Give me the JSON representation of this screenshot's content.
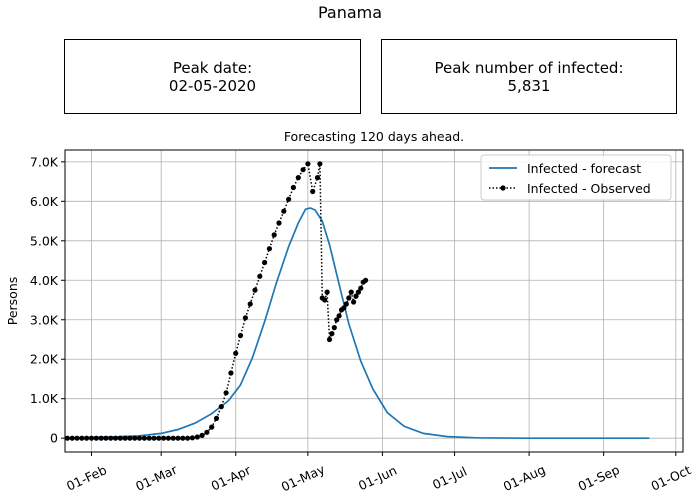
{
  "figure": {
    "title": "Panama"
  },
  "info_boxes": {
    "peak_date": {
      "label": "Peak date:",
      "value": "02-05-2020"
    },
    "peak_number": {
      "label": "Peak number of infected:",
      "value": "5,831"
    }
  },
  "chart_data": {
    "type": "line",
    "title": "Forecasting 120 days ahead.",
    "xlabel": "",
    "ylabel": "Persons",
    "xlim": [
      "2020-01-21",
      "2020-10-04"
    ],
    "ylim": [
      -350,
      7300
    ],
    "yticks": [
      0,
      1000,
      2000,
      3000,
      4000,
      5000,
      6000,
      7000
    ],
    "ytick_labels": [
      "0",
      "1.0K",
      "2.0K",
      "3.0K",
      "4.0K",
      "5.0K",
      "6.0K",
      "7.0K"
    ],
    "xticks": [
      "2020-02-01",
      "2020-03-01",
      "2020-04-01",
      "2020-05-01",
      "2020-06-01",
      "2020-07-01",
      "2020-08-01",
      "2020-09-01",
      "2020-10-01"
    ],
    "xtick_labels": [
      "01-Feb",
      "01-Mar",
      "01-Apr",
      "01-May",
      "01-Jun",
      "01-Jul",
      "01-Aug",
      "01-Sep",
      "01-Oct"
    ],
    "grid": true,
    "legend_position": "top-right",
    "series": [
      {
        "name": "Infected - forecast",
        "color": "#1f77b4",
        "style": "solid",
        "x": [
          "2020-01-22",
          "2020-02-01",
          "2020-02-11",
          "2020-02-21",
          "2020-03-01",
          "2020-03-08",
          "2020-03-15",
          "2020-03-22",
          "2020-03-29",
          "2020-04-03",
          "2020-04-08",
          "2020-04-13",
          "2020-04-18",
          "2020-04-23",
          "2020-04-27",
          "2020-04-30",
          "2020-05-02",
          "2020-05-04",
          "2020-05-07",
          "2020-05-10",
          "2020-05-14",
          "2020-05-18",
          "2020-05-23",
          "2020-05-28",
          "2020-06-03",
          "2020-06-10",
          "2020-06-18",
          "2020-06-28",
          "2020-07-10",
          "2020-08-01",
          "2020-09-01",
          "2020-09-20"
        ],
        "y": [
          10,
          20,
          35,
          60,
          120,
          220,
          380,
          620,
          950,
          1350,
          2050,
          2950,
          3950,
          4850,
          5450,
          5800,
          5831,
          5780,
          5500,
          4900,
          3900,
          2900,
          1950,
          1250,
          650,
          300,
          120,
          40,
          10,
          0,
          0,
          0
        ]
      },
      {
        "name": "Infected - Observed",
        "color": "#000000",
        "style": "dotted",
        "marker": "circle",
        "x": [
          "2020-01-22",
          "2020-01-24",
          "2020-01-26",
          "2020-01-28",
          "2020-01-30",
          "2020-02-01",
          "2020-02-03",
          "2020-02-05",
          "2020-02-07",
          "2020-02-09",
          "2020-02-11",
          "2020-02-13",
          "2020-02-15",
          "2020-02-17",
          "2020-02-19",
          "2020-02-21",
          "2020-02-23",
          "2020-02-25",
          "2020-02-27",
          "2020-02-29",
          "2020-03-02",
          "2020-03-04",
          "2020-03-06",
          "2020-03-08",
          "2020-03-10",
          "2020-03-12",
          "2020-03-14",
          "2020-03-16",
          "2020-03-18",
          "2020-03-20",
          "2020-03-22",
          "2020-03-24",
          "2020-03-26",
          "2020-03-28",
          "2020-03-30",
          "2020-04-01",
          "2020-04-03",
          "2020-04-05",
          "2020-04-07",
          "2020-04-09",
          "2020-04-11",
          "2020-04-13",
          "2020-04-15",
          "2020-04-17",
          "2020-04-19",
          "2020-04-21",
          "2020-04-23",
          "2020-04-25",
          "2020-04-27",
          "2020-04-29",
          "2020-05-01",
          "2020-05-03",
          "2020-05-05",
          "2020-05-06",
          "2020-05-07",
          "2020-05-08",
          "2020-05-09",
          "2020-05-10",
          "2020-05-11",
          "2020-05-12",
          "2020-05-13",
          "2020-05-14",
          "2020-05-15",
          "2020-05-16",
          "2020-05-17",
          "2020-05-18",
          "2020-05-19",
          "2020-05-20",
          "2020-05-21",
          "2020-05-22",
          "2020-05-23",
          "2020-05-24",
          "2020-05-25"
        ],
        "y": [
          0,
          0,
          0,
          0,
          0,
          0,
          0,
          0,
          0,
          0,
          0,
          0,
          0,
          0,
          0,
          0,
          0,
          0,
          0,
          0,
          0,
          0,
          0,
          0,
          0,
          0,
          10,
          30,
          70,
          150,
          280,
          500,
          800,
          1150,
          1650,
          2150,
          2600,
          3050,
          3400,
          3750,
          4100,
          4450,
          4800,
          5150,
          5450,
          5750,
          6050,
          6350,
          6600,
          6800,
          6950,
          6250,
          6600,
          6950,
          3550,
          3500,
          3700,
          2500,
          2650,
          2800,
          3000,
          3100,
          3250,
          3300,
          3400,
          3550,
          3700,
          3450,
          3600,
          3700,
          3800,
          3950,
          4000
        ]
      }
    ]
  }
}
